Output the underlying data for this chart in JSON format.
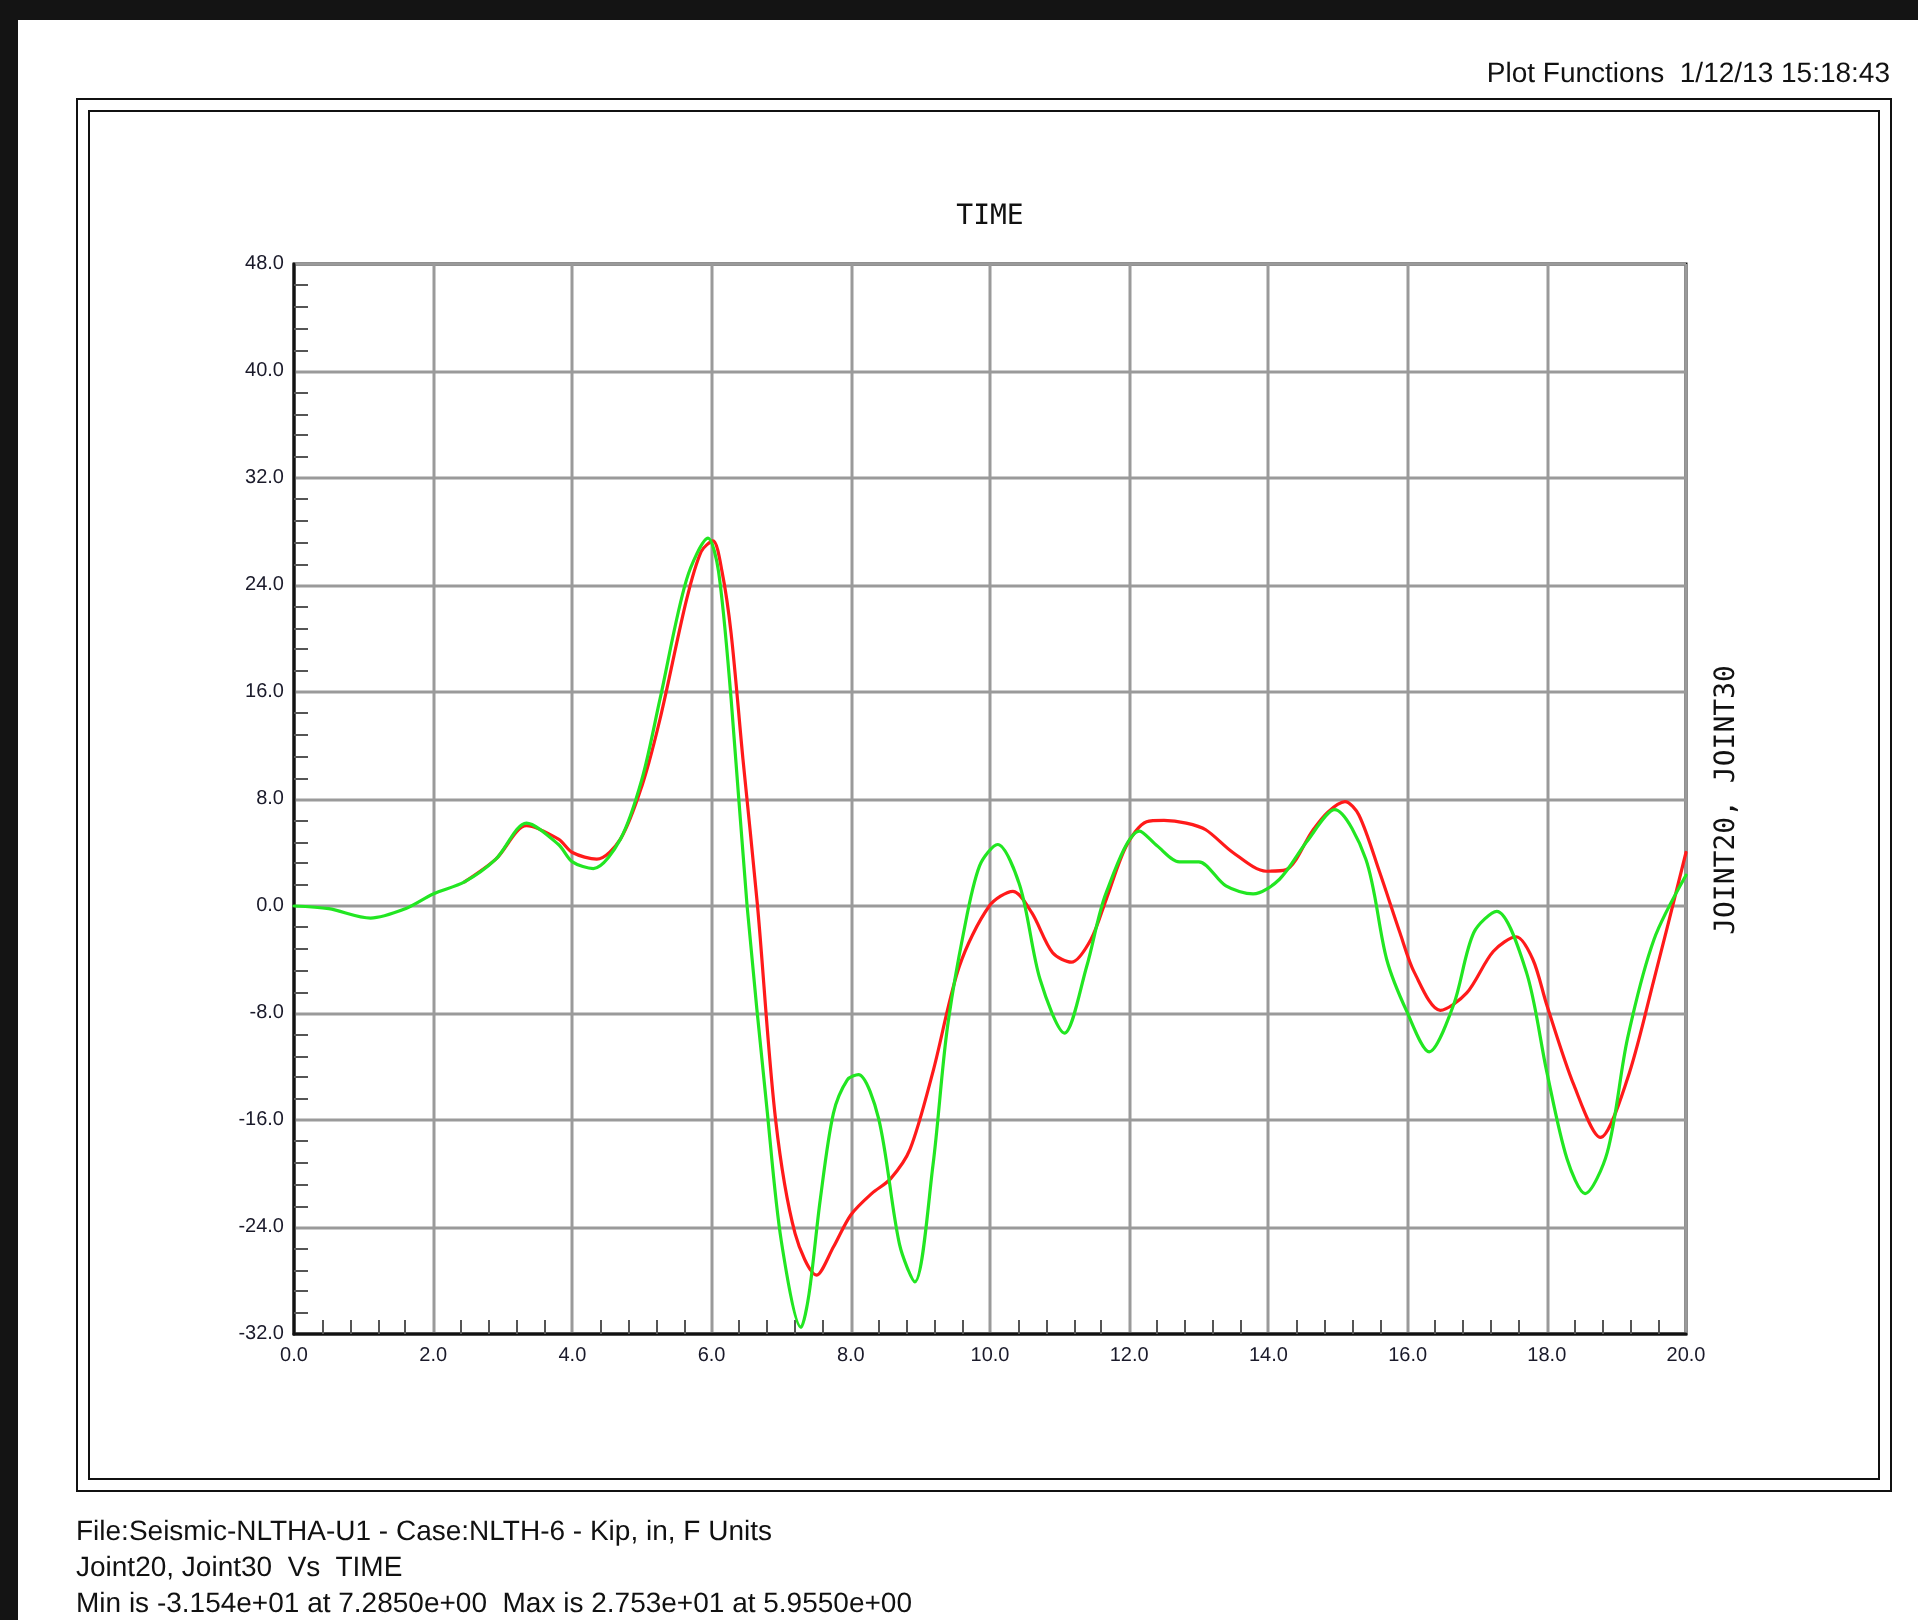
{
  "chart_data": {
    "type": "line",
    "xlabel": "TIME",
    "ylabel": "JOINT20, JOINT30",
    "annotations": [
      "Plot Functions  1/12/13 15:18:43",
      "File:Seismic-NLTHA-U1 - Case:NLTH-6 - Kip, in, F Units",
      "Joint20, Joint30  Vs  TIME",
      "Min is -3.154e+01 at 7.2850e+00  Max is 2.753e+01 at 5.9550e+00"
    ],
    "series": [
      {
        "color": "#ff1a1a",
        "x": [
          2.45,
          2.9,
          3.34,
          3.8,
          4.0,
          4.35,
          4.69,
          5.0,
          5.26,
          5.64,
          5.85,
          6.02,
          6.15,
          6.28,
          6.45,
          6.66,
          6.92,
          7.2,
          7.51,
          7.75,
          8.0,
          8.3,
          8.57,
          8.85,
          9.18,
          9.56,
          9.99,
          10.33,
          10.6,
          10.9,
          11.17,
          11.45,
          11.67,
          11.96,
          12.25,
          12.5,
          12.82,
          13.1,
          13.49,
          13.97,
          14.25,
          14.63,
          14.85,
          15.1,
          15.3,
          15.6,
          15.89,
          16.1,
          16.47,
          16.85,
          17.23,
          17.56,
          17.8,
          18.0,
          18.39,
          18.77,
          19.16,
          19.54,
          20.0
        ],
        "values": [
          1.8,
          3.5,
          6.0,
          5.0,
          4.0,
          3.5,
          5.0,
          9.0,
          14.0,
          22.9,
          26.5,
          27.3,
          25.0,
          20.4,
          11.0,
          0,
          -16.0,
          -24.5,
          -27.6,
          -25.5,
          -23.1,
          -21.5,
          -20.4,
          -18.2,
          -12.4,
          -4.5,
          0,
          1.1,
          -0.5,
          -3.5,
          -4.2,
          -2.5,
          0.5,
          4.5,
          6.3,
          6.4,
          6.2,
          5.7,
          4.0,
          2.6,
          2.7,
          5.6,
          7.0,
          7.8,
          6.8,
          2.5,
          -2.0,
          -5.0,
          -7.8,
          -6.5,
          -3.4,
          -2.3,
          -4.0,
          -7.4,
          -13.4,
          -17.3,
          -12.9,
          -5.5,
          4.0
        ]
      },
      {
        "color": "#22e622",
        "x": [
          0,
          0.5,
          1.1,
          1.6,
          2.0,
          2.45,
          2.9,
          3.34,
          3.8,
          4.0,
          4.3,
          4.69,
          5.0,
          5.26,
          5.64,
          5.95,
          6.1,
          6.28,
          6.51,
          6.8,
          7.0,
          7.285,
          7.4,
          7.56,
          7.75,
          7.95,
          8.11,
          8.4,
          8.7,
          8.92,
          9.18,
          9.38,
          9.62,
          9.85,
          10.11,
          10.43,
          10.72,
          11.07,
          11.39,
          11.67,
          12.15,
          12.4,
          12.72,
          13.0,
          13.39,
          13.78,
          14.16,
          14.55,
          14.95,
          15.4,
          15.7,
          15.99,
          16.31,
          16.66,
          16.95,
          17.28,
          17.71,
          18.0,
          18.29,
          18.55,
          18.87,
          19.16,
          19.54,
          20.0
        ],
        "values": [
          0,
          -0.2,
          -0.9,
          -0.2,
          0.9,
          1.8,
          3.5,
          6.2,
          4.6,
          3.3,
          2.8,
          5.0,
          9.5,
          15.5,
          24.4,
          27.5,
          25.0,
          15.5,
          0,
          -15.4,
          -25.0,
          -31.5,
          -29.0,
          -22.0,
          -15.5,
          -13.0,
          -12.6,
          -15.9,
          -25.3,
          -28.1,
          -19.4,
          -9.4,
          -2.0,
          3.0,
          4.6,
          1.5,
          -5.5,
          -9.5,
          -4.5,
          1.0,
          5.6,
          4.5,
          3.3,
          3.3,
          1.5,
          0.9,
          2.0,
          4.8,
          7.2,
          3.5,
          -4.0,
          -7.9,
          -10.9,
          -7.4,
          -2.0,
          -0.4,
          -5.0,
          -12.4,
          -18.9,
          -21.5,
          -18.4,
          -9.9,
          -2.5,
          2.3
        ]
      }
    ],
    "xlim": [
      0,
      20
    ],
    "xticks": [
      {
        "value": 0,
        "label": "0.0"
      },
      {
        "value": 2,
        "label": "2.0"
      },
      {
        "value": 4,
        "label": "4.0"
      },
      {
        "value": 6,
        "label": "6.0"
      },
      {
        "value": 8,
        "label": "8.0"
      },
      {
        "value": 10,
        "label": "10.0"
      },
      {
        "value": 12,
        "label": "12.0"
      },
      {
        "value": 14,
        "label": "14.0"
      },
      {
        "value": 16,
        "label": "16.0"
      },
      {
        "value": 18,
        "label": "18.0"
      },
      {
        "value": 20,
        "label": "20.0"
      }
    ],
    "ylim": [
      -32,
      48
    ],
    "yticks": [
      {
        "value": -32,
        "label": "-32.0"
      },
      {
        "value": -24,
        "label": "-24.0"
      },
      {
        "value": -16,
        "label": "-16.0"
      },
      {
        "value": -8,
        "label": "-8.0"
      },
      {
        "value": 0,
        "label": "0.0"
      },
      {
        "value": 8,
        "label": "8.0"
      },
      {
        "value": 16,
        "label": "16.0"
      },
      {
        "value": 24,
        "label": "24.0"
      },
      {
        "value": 32,
        "label": "32.0"
      },
      {
        "value": 40,
        "label": "40.0"
      },
      {
        "value": 48,
        "label": "48.0"
      }
    ],
    "grid": true,
    "marker": "none",
    "line_style": "solid"
  }
}
